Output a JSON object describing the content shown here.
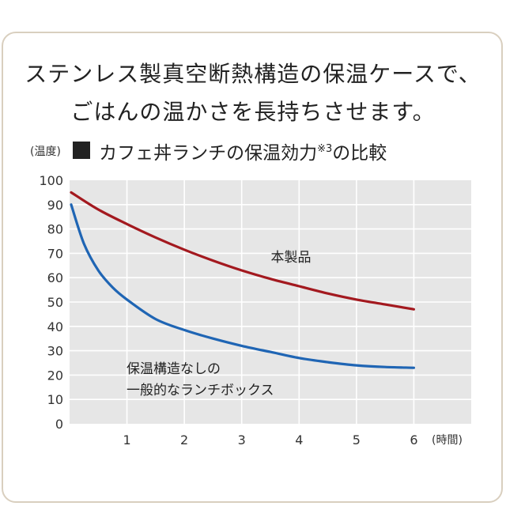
{
  "headline": {
    "line1": "ステンレス製真空断熱構造の保温ケースで、",
    "line2": "ごはんの温かさを長持ちさせます。"
  },
  "chart_data": {
    "type": "line",
    "title": "カフェ丼ランチの保温効力",
    "title_superscript": "※3",
    "title_suffix": "の比較",
    "ylabel": "(温度)",
    "xlabel": "(時間)",
    "ylim": [
      0,
      100
    ],
    "xlim": [
      0,
      7
    ],
    "yticks": [
      0,
      10,
      20,
      30,
      40,
      50,
      60,
      70,
      80,
      90,
      100
    ],
    "xticks": [
      1,
      2,
      3,
      4,
      5,
      6
    ],
    "grid": true,
    "series": [
      {
        "name": "本製品",
        "color": "#a3191f",
        "x": [
          0,
          0.5,
          1,
          1.5,
          2,
          2.5,
          3,
          3.5,
          4,
          4.5,
          5,
          5.5,
          6
        ],
        "y": [
          95,
          88,
          82,
          76.5,
          71.5,
          67,
          63,
          59.5,
          56.5,
          53.5,
          51,
          49,
          47
        ]
      },
      {
        "name": "保温構造なしの\n一般的なランチボックス",
        "label_lines": [
          "保温構造なしの",
          "一般的なランチボックス"
        ],
        "color": "#1f65b4",
        "x": [
          0,
          0.25,
          0.5,
          0.75,
          1,
          1.5,
          2,
          2.5,
          3,
          3.5,
          4,
          4.5,
          5,
          5.5,
          6
        ],
        "y": [
          90,
          74,
          63,
          56,
          51,
          43,
          38.5,
          35,
          32,
          29.5,
          27,
          25.3,
          24,
          23.3,
          23
        ]
      }
    ]
  },
  "colors": {
    "plot_background": "#e6e6e6",
    "grid": "#ffffff",
    "frame": "#d9cfbf"
  }
}
